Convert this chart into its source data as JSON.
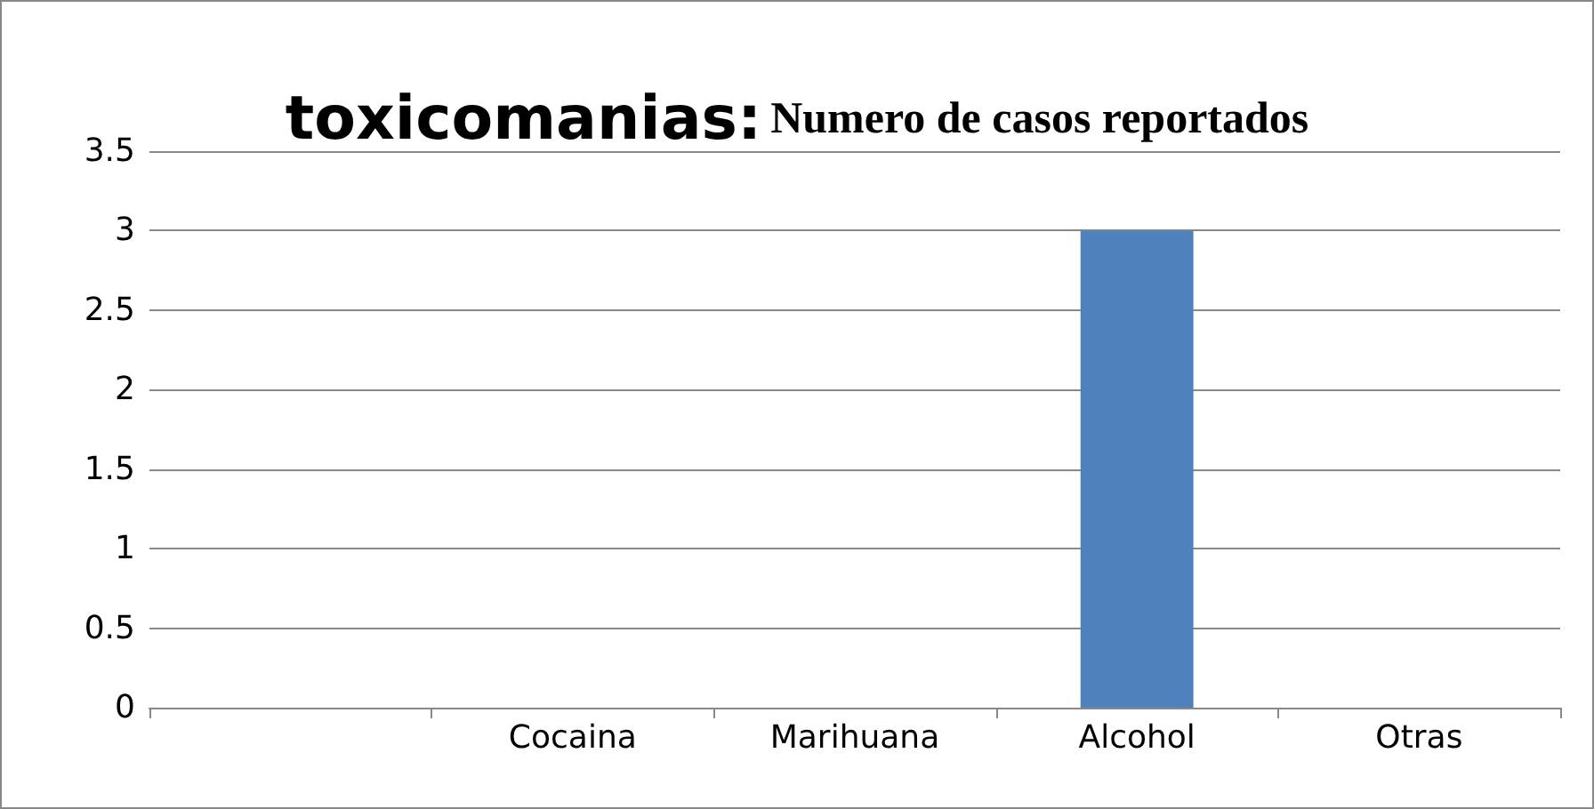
{
  "chart_data": {
    "type": "bar",
    "title": "toxicomanias:",
    "subtitle": "Numero de casos reportados",
    "categories": [
      null,
      "Cocaina",
      "Marihuana",
      "Alcohol",
      "Otras"
    ],
    "values": [
      0,
      0,
      0,
      3,
      0
    ],
    "color": "#4f81bd",
    "ylim": [
      0,
      3.5
    ],
    "yticks": [
      0,
      0.5,
      1,
      1.5,
      2,
      2.5,
      3,
      3.5
    ],
    "grid": "y"
  }
}
